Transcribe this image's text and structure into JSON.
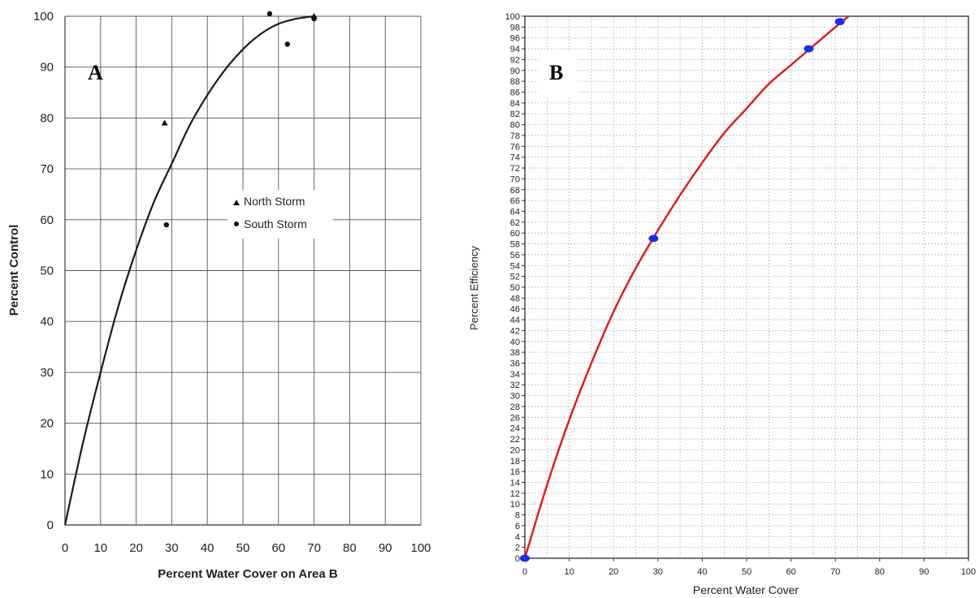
{
  "chart_data": [
    {
      "panel_label": "A",
      "type": "scatter",
      "xlabel": "Percent Water Cover on Area B",
      "ylabel": "Percent Control",
      "xlim": [
        0,
        100
      ],
      "ylim": [
        0,
        100
      ],
      "xticks": [
        0,
        10,
        20,
        30,
        40,
        50,
        60,
        70,
        80,
        90,
        100
      ],
      "yticks": [
        0,
        10,
        20,
        30,
        40,
        50,
        60,
        70,
        80,
        90,
        100
      ],
      "grid": true,
      "legend_placement": "center",
      "series": [
        {
          "name": "North Storm",
          "marker": "triangle",
          "points": [
            [
              28,
              79
            ],
            [
              70,
              100
            ]
          ]
        },
        {
          "name": "South Storm",
          "marker": "circle",
          "points": [
            [
              28.5,
              59
            ],
            [
              57.5,
              100.5
            ],
            [
              62.5,
              94.5
            ],
            [
              70,
              99.5
            ]
          ]
        }
      ],
      "fit_curve": {
        "x": [
          0,
          5,
          10,
          15,
          20,
          25,
          30,
          35,
          40,
          45,
          50,
          55,
          60,
          65,
          70
        ],
        "y": [
          0,
          16,
          30,
          43,
          54,
          63.5,
          71,
          78.5,
          84.5,
          89.5,
          93.5,
          96.5,
          98.5,
          99.5,
          100
        ]
      }
    },
    {
      "panel_label": "B",
      "type": "line",
      "xlabel": "Percent Water Cover",
      "ylabel": "Percent Efficiency",
      "xlim": [
        0,
        100
      ],
      "ylim": [
        0,
        100
      ],
      "xticks": [
        0,
        10,
        20,
        30,
        40,
        50,
        60,
        70,
        80,
        90,
        100
      ],
      "yticks": [
        0,
        2,
        4,
        6,
        8,
        10,
        12,
        14,
        16,
        18,
        20,
        22,
        24,
        26,
        28,
        30,
        32,
        34,
        36,
        38,
        40,
        42,
        44,
        46,
        48,
        50,
        52,
        54,
        56,
        58,
        60,
        62,
        64,
        66,
        68,
        70,
        72,
        74,
        76,
        78,
        80,
        82,
        84,
        86,
        88,
        90,
        92,
        94,
        96,
        98,
        100
      ],
      "grid": true,
      "line_color": "#e8141a",
      "point_color": "#1a2ef0",
      "points": [
        [
          0,
          0
        ],
        [
          29,
          59
        ],
        [
          64,
          94
        ],
        [
          71,
          99
        ]
      ],
      "curve": {
        "x": [
          0,
          5,
          10,
          15,
          20,
          25,
          30,
          35,
          40,
          45,
          50,
          55,
          60,
          65,
          70,
          73
        ],
        "y": [
          0,
          13.5,
          25.5,
          36,
          45.5,
          53.5,
          60.5,
          67,
          73,
          78.5,
          83,
          87.5,
          91,
          94.5,
          98,
          100
        ]
      }
    }
  ]
}
